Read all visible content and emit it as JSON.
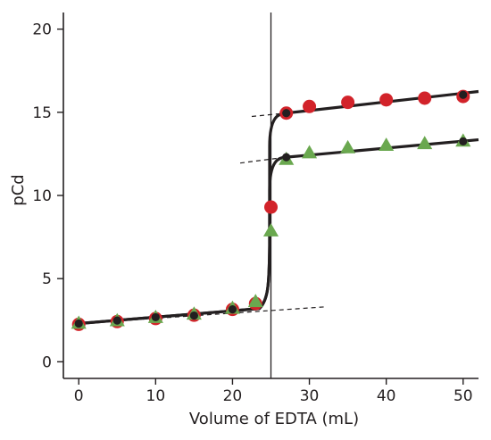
{
  "chart_data": {
    "type": "scatter",
    "xlabel": "Volume of EDTA (mL)",
    "ylabel": "pCd",
    "xlim": [
      -2,
      52
    ],
    "ylim": [
      -1,
      21
    ],
    "xticks": [
      "0",
      "10",
      "20",
      "30",
      "40",
      "50"
    ],
    "yticks": [
      "0",
      "5",
      "10",
      "15",
      "20"
    ],
    "grid": false,
    "equivalence_volume": 25,
    "colors": {
      "red_series": "#d2232a",
      "green_series": "#6aa84f",
      "curve": "#231f20",
      "axis": "#231f20"
    },
    "series": [
      {
        "marker": "circle",
        "color": "#d2232a",
        "x": [
          0,
          5,
          10,
          15,
          20,
          23,
          25,
          27,
          30,
          35,
          40,
          45,
          50
        ],
        "y": [
          2.25,
          2.42,
          2.6,
          2.8,
          3.15,
          3.5,
          9.3,
          14.95,
          15.35,
          15.6,
          15.75,
          15.85,
          15.95
        ]
      },
      {
        "marker": "triangle",
        "color": "#6aa84f",
        "x": [
          0,
          5,
          10,
          15,
          20,
          23,
          25,
          27,
          30,
          35,
          40,
          45,
          50
        ],
        "y": [
          2.3,
          2.45,
          2.65,
          2.85,
          3.2,
          3.6,
          7.85,
          12.15,
          12.55,
          12.85,
          13.0,
          13.1,
          13.25
        ]
      }
    ],
    "curves": [
      {
        "name_hidden": true,
        "segments": [
          {
            "x": [
              0,
              24.6
            ],
            "y": [
              2.3,
              3.25
            ]
          },
          {
            "x": [
              27,
              52
            ],
            "y": [
              14.95,
              16.25
            ]
          },
          {
            "x": [
              27,
              52
            ],
            "y": [
              12.3,
              13.35
            ]
          }
        ]
      }
    ],
    "extrapolation_lines": [
      {
        "x": [
          0,
          32
        ],
        "y": [
          2.3,
          3.3
        ]
      },
      {
        "x": [
          22.5,
          27
        ],
        "y": [
          14.75,
          14.95
        ]
      },
      {
        "x": [
          21,
          27
        ],
        "y": [
          11.95,
          12.3
        ]
      }
    ],
    "calculated_points": {
      "x": [
        0,
        5,
        10,
        15,
        20,
        27,
        50,
        27,
        50
      ],
      "y": [
        2.3,
        2.48,
        2.68,
        2.78,
        3.15,
        14.95,
        16.05,
        12.3,
        13.25
      ]
    }
  }
}
